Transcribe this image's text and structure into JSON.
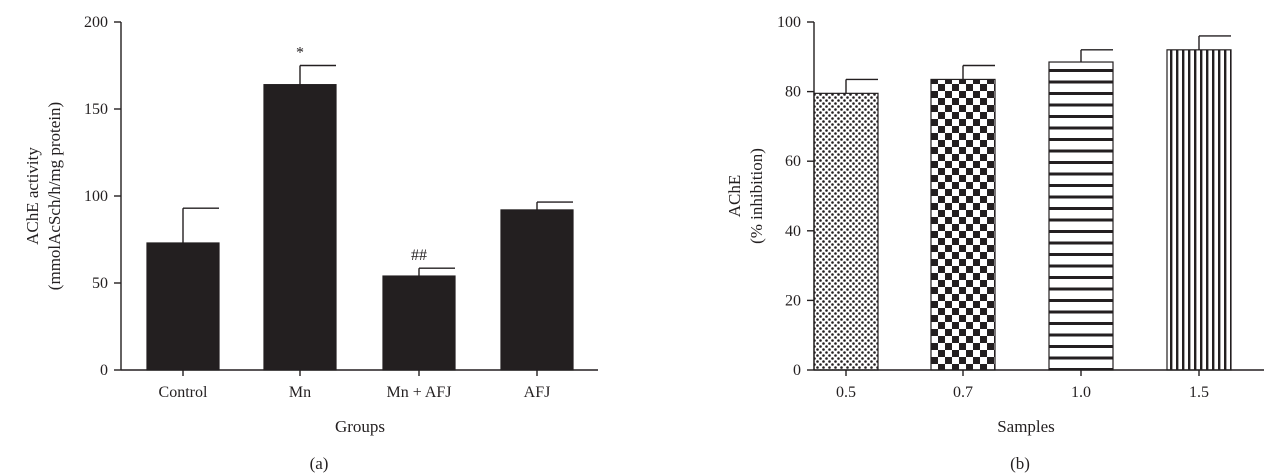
{
  "chart_data": [
    {
      "type": "bar",
      "panel_label": "(a)",
      "categories": [
        "Control",
        "Mn",
        "Mn + AFJ",
        "AFJ"
      ],
      "values": [
        73,
        164,
        54,
        92
      ],
      "errors": [
        20,
        11,
        4.5,
        4.5
      ],
      "annotations": [
        "",
        "*",
        "##",
        ""
      ],
      "xlabel": "Groups",
      "ylabel_lines": [
        "AChE activity",
        "(mmolAcSch/h/mg protein)"
      ],
      "ylim": [
        0,
        200
      ],
      "yticks": [
        0,
        50,
        100,
        150,
        200
      ],
      "fill": "#231f20",
      "grid": false
    },
    {
      "type": "bar",
      "panel_label": "(b)",
      "categories": [
        "0.5",
        "0.7",
        "1.0",
        "1.5"
      ],
      "values": [
        79.5,
        83.5,
        88.5,
        92
      ],
      "errors": [
        4,
        4,
        3.5,
        4
      ],
      "patterns": [
        "dots",
        "checker",
        "horizontal-stripes",
        "vertical-stripes"
      ],
      "xlabel": "Samples",
      "ylabel_lines": [
        "AChE",
        "(% inhibition)"
      ],
      "ylim": [
        0,
        100
      ],
      "yticks": [
        0,
        20,
        40,
        60,
        80,
        100
      ],
      "grid": false
    }
  ]
}
